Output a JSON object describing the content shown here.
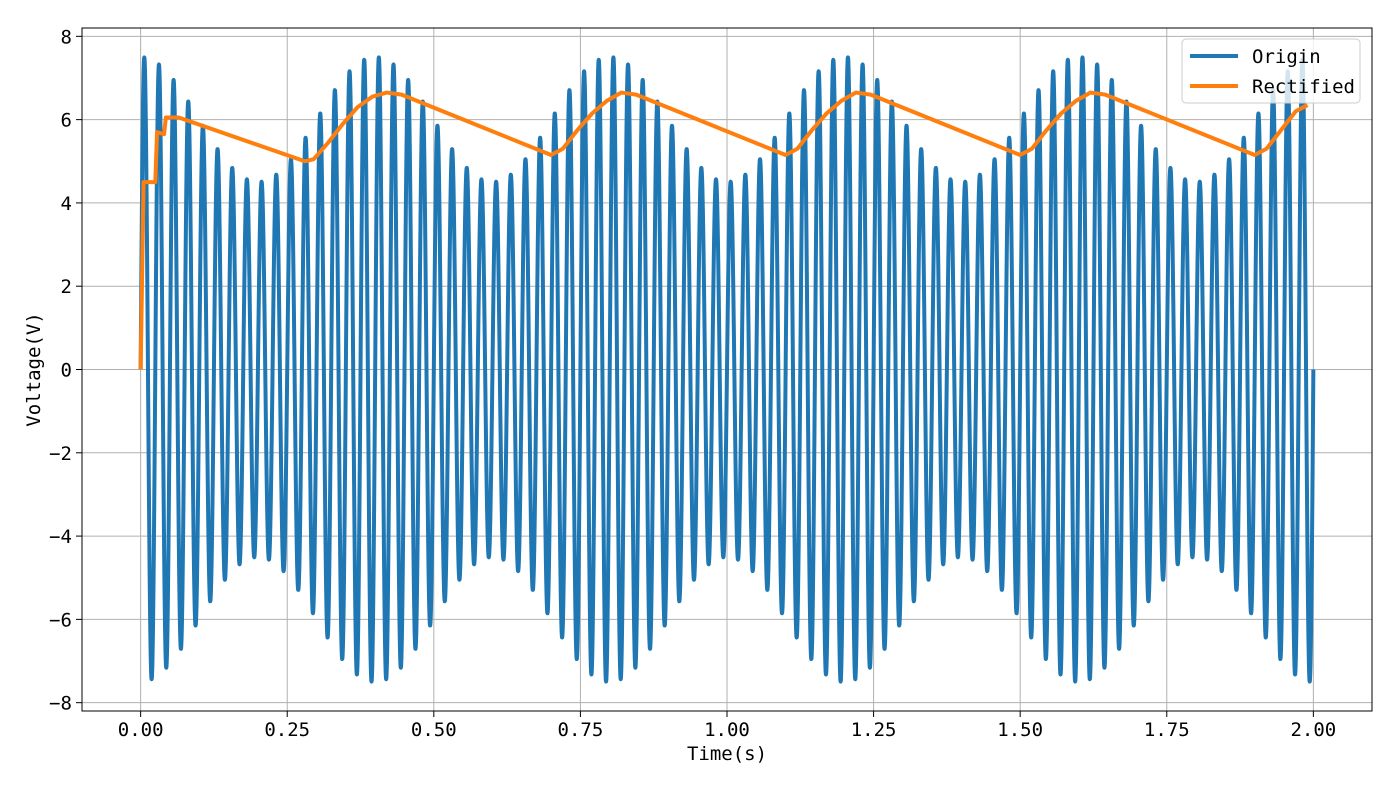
{
  "chart_data": {
    "type": "line",
    "title": "",
    "xlabel": "Time(s)",
    "ylabel": "Voltage(V)",
    "xlim": [
      -0.1,
      2.1
    ],
    "ylim": [
      -8.2,
      8.2
    ],
    "xticks": [
      0.0,
      0.25,
      0.5,
      0.75,
      1.0,
      1.25,
      1.5,
      1.75,
      2.0
    ],
    "xtick_labels": [
      "0.00",
      "0.25",
      "0.50",
      "0.75",
      "1.00",
      "1.25",
      "1.50",
      "1.75",
      "2.00"
    ],
    "yticks": [
      -8,
      -6,
      -4,
      -2,
      0,
      2,
      4,
      6,
      8
    ],
    "ytick_labels": [
      "−8",
      "−6",
      "−4",
      "−2",
      "0",
      "2",
      "4",
      "6",
      "8"
    ],
    "grid": true,
    "legend_position": "top-right",
    "series": [
      {
        "name": "Origin",
        "color": "#1f77b4",
        "description_values": {
          "carrier_frequency_hz": 40,
          "modulation_frequency_hz": 2.5,
          "min_envelope": 4.5,
          "max_envelope": 7.5,
          "envelope_max_at_s": [
            0.0,
            0.4,
            0.8,
            1.2,
            1.6,
            2.0
          ],
          "envelope_min_at_s": [
            0.2,
            0.6,
            1.0,
            1.4,
            1.8
          ]
        },
        "x_range": [
          0.0,
          2.0
        ]
      },
      {
        "name": "Rectified",
        "color": "#ff7f0e",
        "x": [
          0.0,
          0.005,
          0.018,
          0.025,
          0.028,
          0.04,
          0.043,
          0.065,
          0.28,
          0.295,
          0.32,
          0.345,
          0.37,
          0.395,
          0.42,
          0.445,
          0.7,
          0.72,
          0.745,
          0.77,
          0.795,
          0.82,
          0.845,
          1.1,
          1.12,
          1.145,
          1.17,
          1.195,
          1.22,
          1.245,
          1.5,
          1.52,
          1.545,
          1.57,
          1.595,
          1.62,
          1.645,
          1.9,
          1.92,
          1.945,
          1.97,
          1.99
        ],
        "y": [
          0.0,
          4.5,
          4.5,
          4.5,
          5.7,
          5.65,
          6.05,
          6.05,
          5.0,
          5.05,
          5.45,
          5.9,
          6.3,
          6.55,
          6.65,
          6.6,
          5.15,
          5.3,
          5.75,
          6.15,
          6.45,
          6.65,
          6.6,
          5.15,
          5.3,
          5.75,
          6.15,
          6.45,
          6.65,
          6.6,
          5.15,
          5.3,
          5.75,
          6.15,
          6.45,
          6.65,
          6.6,
          5.15,
          5.3,
          5.75,
          6.2,
          6.35
        ]
      }
    ]
  }
}
